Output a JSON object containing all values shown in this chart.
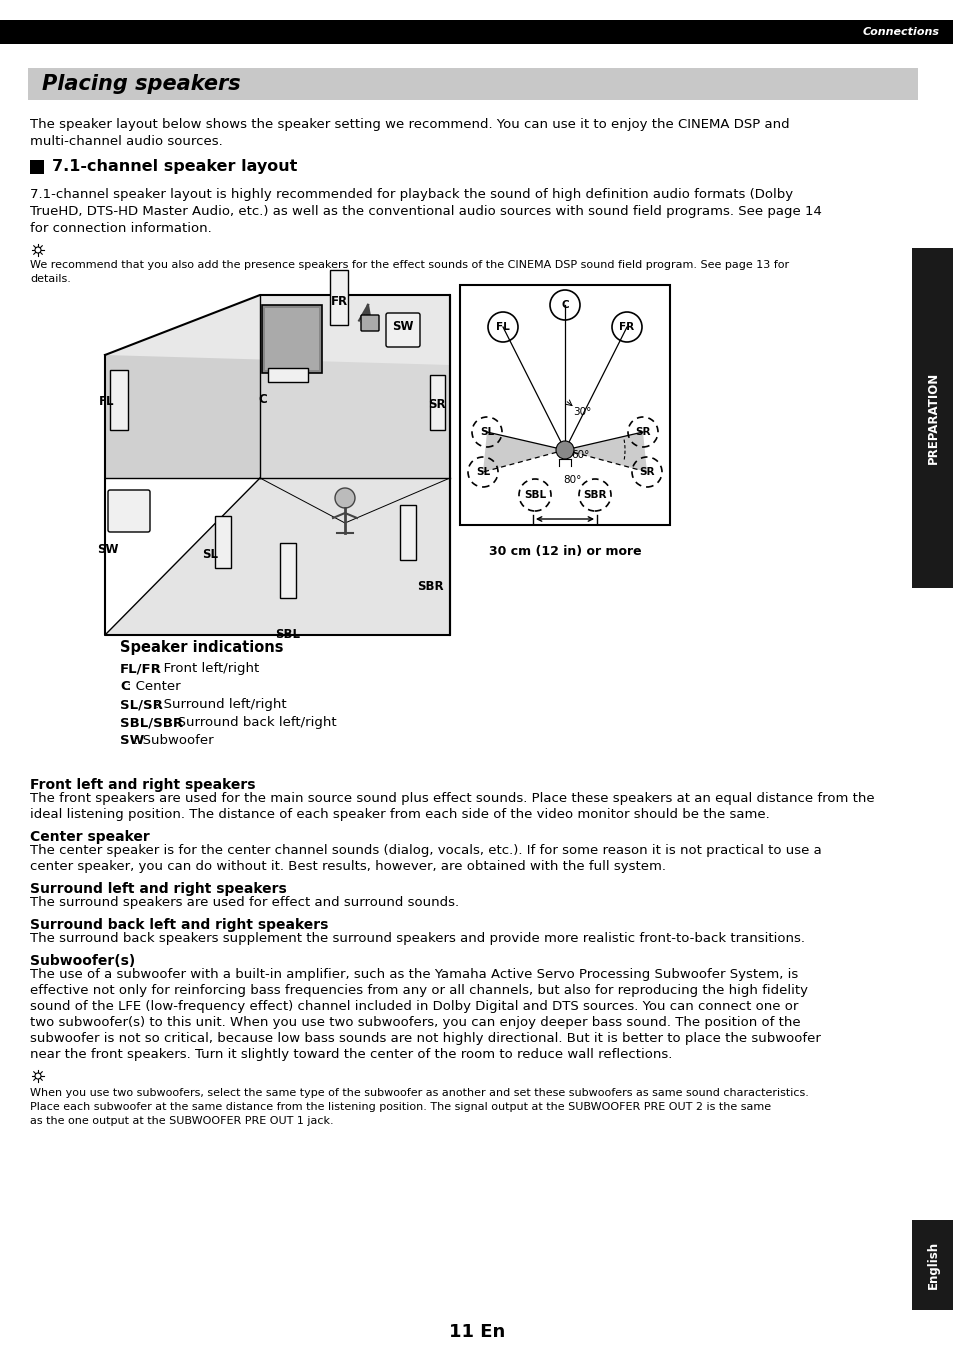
{
  "page_bg": "#ffffff",
  "header_bar_color": "#000000",
  "header_text": "Connections",
  "title_box_color": "#c8c8c8",
  "title_text": "Placing speakers",
  "section_heading": "7.1-channel speaker layout",
  "intro_text": "The speaker layout below shows the speaker setting we recommend. You can use it to enjoy the CINEMA DSP and\nmulti-channel audio sources.",
  "section_body": "7.1-channel speaker layout is highly recommended for playback the sound of high definition audio formats (Dolby\nTrueHD, DTS-HD Master Audio, etc.) as well as the conventional audio sources with sound field programs. See page 14\nfor connection information.",
  "note_text": "We recommend that you also add the presence speakers for the effect sounds of the CINEMA DSP sound field program. See page 13 for\ndetails.",
  "diagram_caption": "30 cm (12 in) or more",
  "speaker_indications_title": "Speaker indications",
  "speaker_indications": [
    {
      "bold": "FL/FR",
      "normal": ": Front left/right"
    },
    {
      "bold": "C",
      "normal": ": Center"
    },
    {
      "bold": "SL/SR",
      "normal": ": Surround left/right"
    },
    {
      "bold": "SBL/SBR",
      "normal": ": Surround back left/right"
    },
    {
      "bold": "SW",
      "normal": ": Subwoofer"
    }
  ],
  "section2_title": "Front left and right speakers",
  "section2_body": "The front speakers are used for the main source sound plus effect sounds. Place these speakers at an equal distance from the\nideal listening position. The distance of each speaker from each side of the video monitor should be the same.",
  "section3_title": "Center speaker",
  "section3_body": "The center speaker is for the center channel sounds (dialog, vocals, etc.). If for some reason it is not practical to use a\ncenter speaker, you can do without it. Best results, however, are obtained with the full system.",
  "section4_title": "Surround left and right speakers",
  "section4_body": "The surround speakers are used for effect and surround sounds.",
  "section5_title": "Surround back left and right speakers",
  "section5_body": "The surround back speakers supplement the surround speakers and provide more realistic front-to-back transitions.",
  "section6_title": "Subwoofer(s)",
  "section6_body": "The use of a subwoofer with a built-in amplifier, such as the Yamaha Active Servo Processing Subwoofer System, is\neffective not only for reinforcing bass frequencies from any or all channels, but also for reproducing the high fidelity\nsound of the LFE (low-frequency effect) channel included in Dolby Digital and DTS sources. You can connect one or\ntwo subwoofer(s) to this unit. When you use two subwoofers, you can enjoy deeper bass sound. The position of the\nsubwoofer is not so critical, because low bass sounds are not highly directional. But it is better to place the subwoofer\nnear the front speakers. Turn it slightly toward the center of the room to reduce wall reflections.",
  "note2_text": "When you use two subwoofers, select the same type of the subwoofer as another and set these subwoofers as same sound characteristics.\nPlace each subwoofer at the same distance from the listening position. The signal output at the SUBWOOFER PRE OUT 2 is the same\nas the one output at the SUBWOOFER PRE OUT 1 jack.",
  "page_number": "11 En",
  "right_sidebar_text": "PREPARATION",
  "bottom_sidebar_text": "English",
  "sidebar_bg": "#1a1a1a"
}
